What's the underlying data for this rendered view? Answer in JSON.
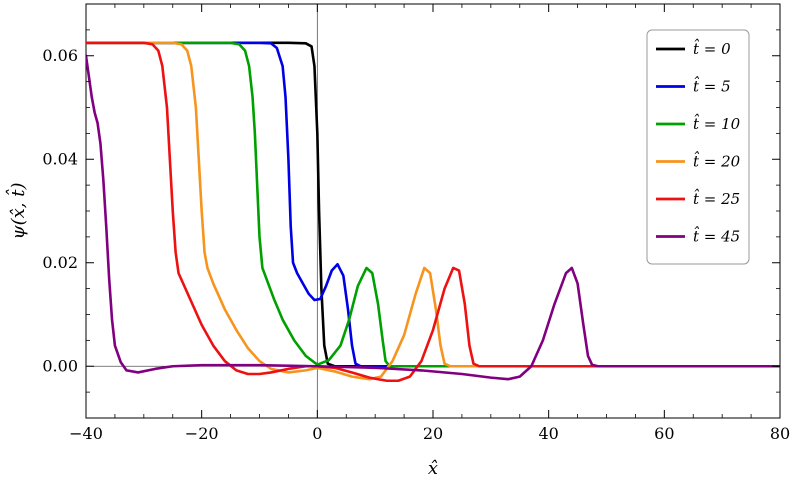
{
  "chart_data": {
    "type": "line",
    "xlabel": "x̂",
    "ylabel": "ψ(x̂, t̂)",
    "xlim": [
      -40,
      80
    ],
    "ylim": [
      -0.01,
      0.07
    ],
    "x_ticks": [
      -40,
      -20,
      0,
      20,
      40,
      60,
      80
    ],
    "x_tick_labels": [
      "−40",
      "−20",
      "0",
      "20",
      "40",
      "60",
      "80"
    ],
    "y_ticks": [
      0.0,
      0.02,
      0.04,
      0.06
    ],
    "y_tick_labels": [
      "0.00",
      "0.02",
      "0.04",
      "0.06"
    ],
    "grid": false,
    "axis_lines": true,
    "legend_position": "top-right",
    "series": [
      {
        "name": "t̂ = 0",
        "color": "#000000",
        "points": [
          [
            -40,
            0.0625
          ],
          [
            -5,
            0.0625
          ],
          [
            -2,
            0.0624
          ],
          [
            -1,
            0.0618
          ],
          [
            -0.5,
            0.058
          ],
          [
            0,
            0.045
          ],
          [
            0.3,
            0.03
          ],
          [
            0.7,
            0.015
          ],
          [
            1.2,
            0.004
          ],
          [
            1.8,
            0.0005
          ],
          [
            3,
            0
          ],
          [
            80,
            0
          ]
        ]
      },
      {
        "name": "t̂ = 5",
        "color": "#0000e6",
        "points": [
          [
            -40,
            0.0625
          ],
          [
            -10,
            0.0625
          ],
          [
            -8,
            0.0624
          ],
          [
            -7,
            0.0615
          ],
          [
            -6,
            0.058
          ],
          [
            -5.5,
            0.052
          ],
          [
            -5,
            0.04
          ],
          [
            -4.6,
            0.027
          ],
          [
            -4.2,
            0.02
          ],
          [
            -3.5,
            0.018
          ],
          [
            -2.5,
            0.016
          ],
          [
            -1.5,
            0.014
          ],
          [
            -0.5,
            0.0128
          ],
          [
            0.5,
            0.013
          ],
          [
            1.5,
            0.0155
          ],
          [
            2.5,
            0.0185
          ],
          [
            3.5,
            0.0197
          ],
          [
            4.5,
            0.0175
          ],
          [
            5.3,
            0.011
          ],
          [
            6,
            0.004
          ],
          [
            6.6,
            0.0005
          ],
          [
            7.5,
            0
          ],
          [
            80,
            0
          ]
        ]
      },
      {
        "name": "t̂ = 10",
        "color": "#00a000",
        "points": [
          [
            -40,
            0.0625
          ],
          [
            -15,
            0.0625
          ],
          [
            -13.5,
            0.0622
          ],
          [
            -12.5,
            0.061
          ],
          [
            -11.8,
            0.058
          ],
          [
            -11.2,
            0.052
          ],
          [
            -10.8,
            0.045
          ],
          [
            -10.4,
            0.035
          ],
          [
            -10,
            0.025
          ],
          [
            -9.5,
            0.019
          ],
          [
            -8.5,
            0.016
          ],
          [
            -7.5,
            0.013
          ],
          [
            -6,
            0.009
          ],
          [
            -4,
            0.005
          ],
          [
            -2,
            0.002
          ],
          [
            0,
            0.0003
          ],
          [
            2,
            0.0012
          ],
          [
            4,
            0.004
          ],
          [
            5.5,
            0.009
          ],
          [
            7,
            0.0155
          ],
          [
            8.5,
            0.019
          ],
          [
            9.5,
            0.018
          ],
          [
            10.5,
            0.012
          ],
          [
            11.3,
            0.005
          ],
          [
            11.8,
            0.001
          ],
          [
            12.5,
            0
          ],
          [
            80,
            0
          ]
        ]
      },
      {
        "name": "t̂ = 20",
        "color": "#f7941d",
        "points": [
          [
            -40,
            0.0625
          ],
          [
            -25,
            0.0625
          ],
          [
            -23.5,
            0.0622
          ],
          [
            -22.5,
            0.061
          ],
          [
            -21.8,
            0.058
          ],
          [
            -21,
            0.05
          ],
          [
            -20.5,
            0.04
          ],
          [
            -20,
            0.03
          ],
          [
            -19.5,
            0.022
          ],
          [
            -19,
            0.019
          ],
          [
            -18,
            0.016
          ],
          [
            -16,
            0.011
          ],
          [
            -14,
            0.007
          ],
          [
            -12,
            0.0035
          ],
          [
            -10,
            0.001
          ],
          [
            -8,
            -0.0005
          ],
          [
            -5,
            -0.0012
          ],
          [
            -2,
            -0.0008
          ],
          [
            0,
            -0.0003
          ],
          [
            3,
            -0.001
          ],
          [
            6,
            -0.002
          ],
          [
            9,
            -0.0025
          ],
          [
            11,
            -0.002
          ],
          [
            13,
            0.001
          ],
          [
            15,
            0.006
          ],
          [
            17,
            0.014
          ],
          [
            18.5,
            0.019
          ],
          [
            19.5,
            0.018
          ],
          [
            20.5,
            0.011
          ],
          [
            21.3,
            0.004
          ],
          [
            22,
            0.0005
          ],
          [
            23,
            0
          ],
          [
            80,
            0
          ]
        ]
      },
      {
        "name": "t̂ = 25",
        "color": "#ee1111",
        "points": [
          [
            -40,
            0.0625
          ],
          [
            -30,
            0.0625
          ],
          [
            -28.5,
            0.0622
          ],
          [
            -27.5,
            0.061
          ],
          [
            -26.8,
            0.058
          ],
          [
            -26,
            0.05
          ],
          [
            -25.5,
            0.04
          ],
          [
            -25,
            0.03
          ],
          [
            -24.5,
            0.022
          ],
          [
            -24,
            0.018
          ],
          [
            -22,
            0.013
          ],
          [
            -20,
            0.008
          ],
          [
            -18,
            0.004
          ],
          [
            -16,
            0.001
          ],
          [
            -14,
            -0.0008
          ],
          [
            -12,
            -0.0015
          ],
          [
            -10,
            -0.0015
          ],
          [
            -8,
            -0.0012
          ],
          [
            -5,
            -0.0005
          ],
          [
            -2,
            0
          ],
          [
            0,
            0
          ],
          [
            3,
            -0.0003
          ],
          [
            6,
            -0.0012
          ],
          [
            9,
            -0.0022
          ],
          [
            12,
            -0.0028
          ],
          [
            14,
            -0.0028
          ],
          [
            16,
            -0.002
          ],
          [
            18,
            0.001
          ],
          [
            20,
            0.007
          ],
          [
            22,
            0.015
          ],
          [
            23.5,
            0.019
          ],
          [
            24.5,
            0.0185
          ],
          [
            25.5,
            0.012
          ],
          [
            26.3,
            0.004
          ],
          [
            27,
            0.0005
          ],
          [
            28,
            0
          ],
          [
            80,
            0
          ]
        ]
      },
      {
        "name": "t̂ = 45",
        "color": "#800080",
        "points": [
          [
            -40,
            0.06
          ],
          [
            -39.5,
            0.056
          ],
          [
            -39,
            0.052
          ],
          [
            -38.5,
            0.049
          ],
          [
            -38,
            0.047
          ],
          [
            -37.5,
            0.043
          ],
          [
            -37,
            0.036
          ],
          [
            -36.5,
            0.027
          ],
          [
            -36,
            0.017
          ],
          [
            -35.5,
            0.009
          ],
          [
            -35,
            0.004
          ],
          [
            -34,
            0.0008
          ],
          [
            -33,
            -0.0008
          ],
          [
            -31,
            -0.0012
          ],
          [
            -28,
            -0.0005
          ],
          [
            -25,
            0
          ],
          [
            -20,
            0.0002
          ],
          [
            -10,
            0.0002
          ],
          [
            0,
            0
          ],
          [
            10,
            -0.0003
          ],
          [
            18,
            -0.0008
          ],
          [
            25,
            -0.0015
          ],
          [
            30,
            -0.0022
          ],
          [
            33,
            -0.0025
          ],
          [
            35,
            -0.002
          ],
          [
            37,
            0
          ],
          [
            39,
            0.005
          ],
          [
            41,
            0.012
          ],
          [
            43,
            0.018
          ],
          [
            44,
            0.019
          ],
          [
            45,
            0.016
          ],
          [
            46,
            0.008
          ],
          [
            46.8,
            0.002
          ],
          [
            47.5,
            0.0003
          ],
          [
            48.5,
            0
          ],
          [
            80,
            0
          ]
        ]
      }
    ]
  }
}
